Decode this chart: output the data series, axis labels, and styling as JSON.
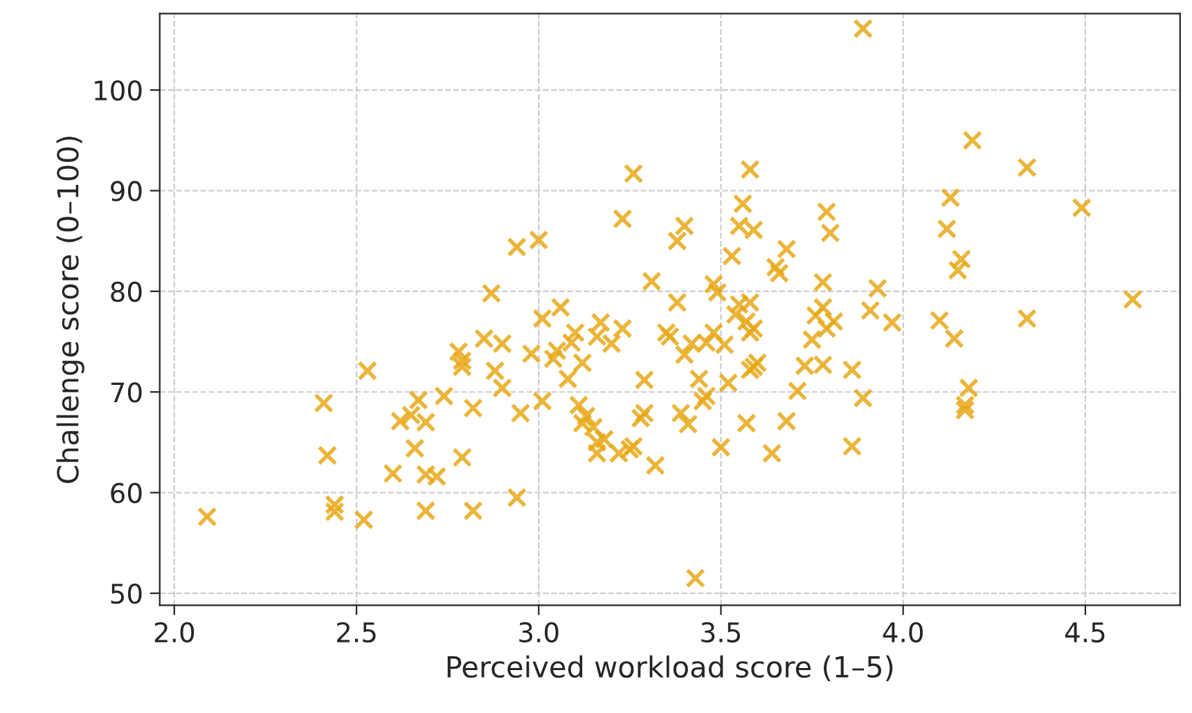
{
  "chart_data": {
    "type": "scatter",
    "xlabel": "Perceived workload score (1–5)",
    "ylabel": "Challenge score (0–100)",
    "xlim": [
      1.96,
      4.76
    ],
    "ylim": [
      48.8,
      107.6
    ],
    "xticks": [
      {
        "value": 2,
        "label": "2.0"
      },
      2.5,
      {
        "value": 3,
        "label": "3.0"
      },
      3.5,
      {
        "value": 4,
        "label": "4.0"
      },
      4.5
    ],
    "yticks": [
      50,
      60,
      70,
      80,
      90,
      100
    ],
    "grid": true,
    "marker": "cross",
    "legend": false,
    "series": [
      {
        "color": "#e6a817",
        "x": [
          2.09,
          2.41,
          2.42,
          2.44,
          2.44,
          2.52,
          2.53,
          2.6,
          2.62,
          2.65,
          2.66,
          2.67,
          2.69,
          2.69,
          2.69,
          2.72,
          2.74,
          2.78,
          2.79,
          2.79,
          2.79,
          2.82,
          2.82,
          2.85,
          2.87,
          2.88,
          2.9,
          2.9,
          2.94,
          2.95,
          2.94,
          2.98,
          3.0,
          3.01,
          3.01,
          3.04,
          3.05,
          3.06,
          3.08,
          3.09,
          3.1,
          3.11,
          3.12,
          3.12,
          3.13,
          3.15,
          3.16,
          3.16,
          3.16,
          3.17,
          3.18,
          3.2,
          3.22,
          3.23,
          3.23,
          3.25,
          3.26,
          3.26,
          3.28,
          3.29,
          3.29,
          3.31,
          3.32,
          3.35,
          3.36,
          3.38,
          3.38,
          3.4,
          3.39,
          3.41,
          3.4,
          3.42,
          3.43,
          3.44,
          3.45,
          3.46,
          3.46,
          3.48,
          3.48,
          3.49,
          3.5,
          3.51,
          3.52,
          3.53,
          3.54,
          3.55,
          3.55,
          3.56,
          3.57,
          3.58,
          3.58,
          3.59,
          3.58,
          3.59,
          3.58,
          3.59,
          3.57,
          3.6,
          3.64,
          3.65,
          3.66,
          3.68,
          3.68,
          3.71,
          3.73,
          3.75,
          3.76,
          3.78,
          3.78,
          3.78,
          3.79,
          3.8,
          3.79,
          3.81,
          3.86,
          3.86,
          3.89,
          3.89,
          3.91,
          3.93,
          3.97,
          4.1,
          4.12,
          4.13,
          4.14,
          4.15,
          4.16,
          4.17,
          4.17,
          4.18,
          4.19,
          4.34,
          4.34,
          4.49,
          4.63
        ],
        "values": [
          57.6,
          68.9,
          63.7,
          58.8,
          58.1,
          57.3,
          72.1,
          61.9,
          67.1,
          67.7,
          64.4,
          69.2,
          67.0,
          58.2,
          61.8,
          61.6,
          69.6,
          74.0,
          73.1,
          72.5,
          63.5,
          58.2,
          68.4,
          75.3,
          79.8,
          72.1,
          74.8,
          70.4,
          84.4,
          67.9,
          59.5,
          73.8,
          85.1,
          77.3,
          69.1,
          73.3,
          74.1,
          78.4,
          71.3,
          74.9,
          75.9,
          68.7,
          66.9,
          72.9,
          67.6,
          66.5,
          65.0,
          63.9,
          75.5,
          76.9,
          65.3,
          74.8,
          63.9,
          87.2,
          76.3,
          64.3,
          91.7,
          64.6,
          67.4,
          67.9,
          71.2,
          81.0,
          62.7,
          75.9,
          75.5,
          78.9,
          85.0,
          86.5,
          67.9,
          66.8,
          73.7,
          74.8,
          51.5,
          71.3,
          69.1,
          74.9,
          69.6,
          75.9,
          80.7,
          79.9,
          64.5,
          74.7,
          70.9,
          83.5,
          77.7,
          78.7,
          86.5,
          88.7,
          77.0,
          78.9,
          75.9,
          76.3,
          72.2,
          72.5,
          92.1,
          86.1,
          66.9,
          72.9,
          63.9,
          82.4,
          81.8,
          67.1,
          84.2,
          70.1,
          72.6,
          75.2,
          77.6,
          72.7,
          78.4,
          80.9,
          87.9,
          85.8,
          76.3,
          77.0,
          64.6,
          72.2,
          69.4,
          106.1,
          78.1,
          80.3,
          76.9,
          77.1,
          86.2,
          89.3,
          75.3,
          82.1,
          83.2,
          68.7,
          68.2,
          70.4,
          95.0,
          92.3,
          77.3,
          88.3,
          79.2
        ]
      }
    ]
  }
}
